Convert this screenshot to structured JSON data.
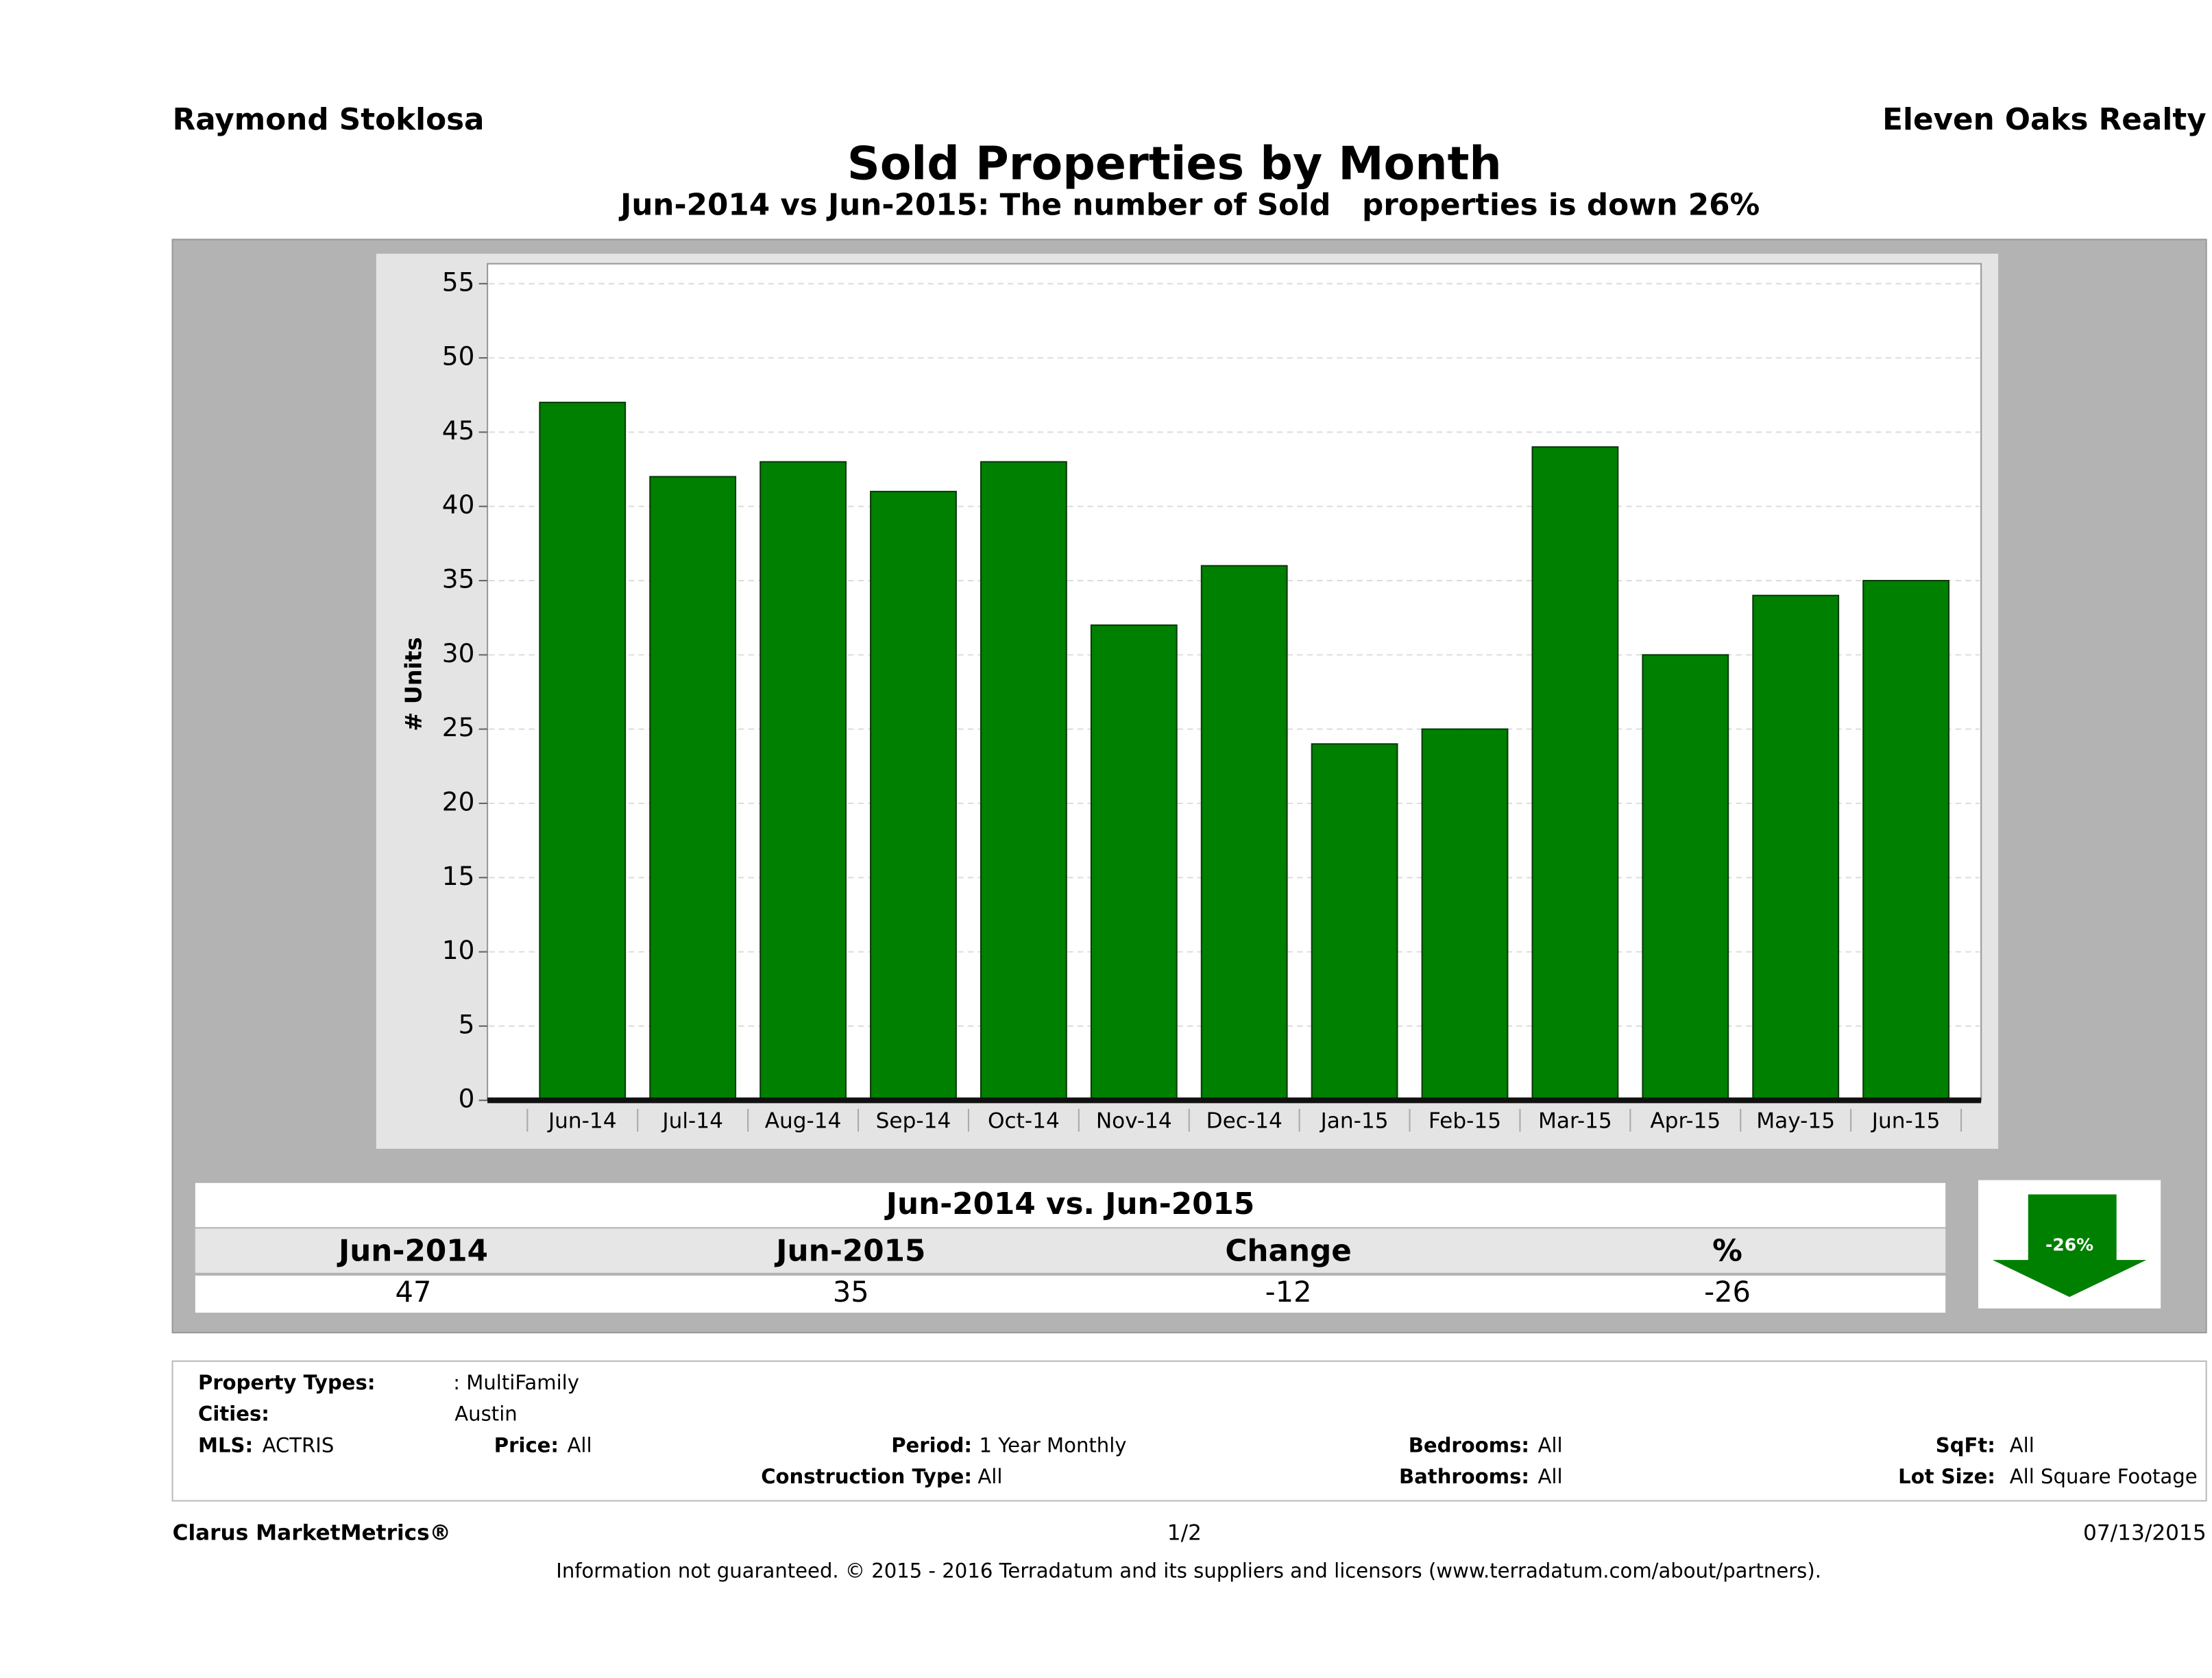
{
  "header": {
    "left": "Raymond Stoklosa",
    "right": "Eleven Oaks Realty"
  },
  "chart_data": {
    "type": "bar",
    "title": "Sold Properties by Month",
    "subtitle": "Jun-2014 vs Jun-2015: The number of Sold   properties is down 26%",
    "y_label": "# Units",
    "categories": [
      "Jun-14",
      "Jul-14",
      "Aug-14",
      "Sep-14",
      "Oct-14",
      "Nov-14",
      "Dec-14",
      "Jan-15",
      "Feb-15",
      "Mar-15",
      "Apr-15",
      "May-15",
      "Jun-15"
    ],
    "values": [
      47,
      42,
      43,
      41,
      43,
      32,
      36,
      24,
      25,
      44,
      30,
      34,
      35
    ],
    "color": "#008000",
    "ylim": [
      0,
      55
    ],
    "yticks": [
      0,
      5,
      10,
      15,
      20,
      25,
      30,
      35,
      40,
      45,
      50,
      55
    ],
    "grid": true
  },
  "summary": {
    "title": "Jun-2014 vs. Jun-2015",
    "headers": [
      "Jun-2014",
      "Jun-2015",
      "Change",
      "%"
    ],
    "values": [
      47,
      35,
      -12,
      -26
    ],
    "badge": "-26%"
  },
  "filters": [
    {
      "label": "Property Types:",
      "value": ": MultiFamily"
    },
    {
      "label": "Cities:",
      "value": "Austin"
    },
    {
      "label": "MLS:",
      "value": "ACTRIS"
    },
    {
      "label": "Price:",
      "value": "All"
    },
    {
      "label": "Period:",
      "value": "1 Year Monthly"
    },
    {
      "label": "Construction Type:",
      "value": "All"
    },
    {
      "label": "Bedrooms:",
      "value": "All"
    },
    {
      "label": "Bathrooms:",
      "value": "All"
    },
    {
      "label": "SqFt:",
      "value": "All"
    },
    {
      "label": "Lot Size:",
      "value": "All Square Footage"
    }
  ],
  "footer": {
    "brand": "Clarus MarketMetrics®",
    "page": "1/2",
    "date": "07/13/2015",
    "disclaimer": "Information not guaranteed. © 2015 - 2016 Terradatum and its suppliers and licensors (www.terradatum.com/about/partners)."
  }
}
